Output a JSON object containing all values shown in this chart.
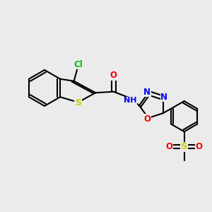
{
  "background_color": "#ebebeb",
  "bond_color": "#000000",
  "bond_width": 1.5,
  "atom_colors": {
    "Cl": "#00bb00",
    "S": "#cccc00",
    "N": "#0000ee",
    "O": "#ee0000",
    "C": "#000000",
    "H": "#000000"
  },
  "font_size": 8.5
}
